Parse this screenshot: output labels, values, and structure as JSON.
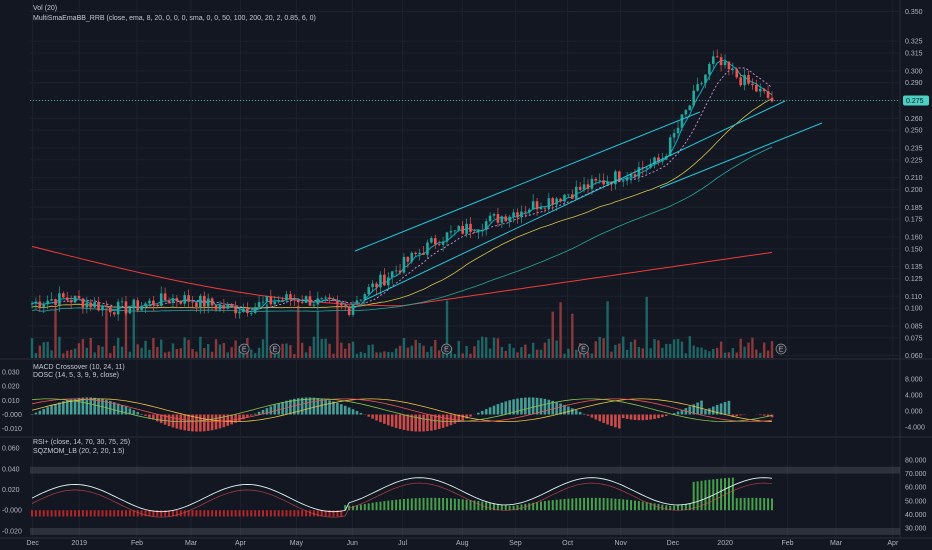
{
  "chart_data": [
    {
      "type": "candlestick",
      "panel": "price",
      "legend": [
        "Vol (20)",
        "MultiSmaEmaBB_RRB (close, ema, 8, 20, 0, 0, 0, sma, 0, 0, 50, 100, 200, 20, 2, 0.85, 6, 0)"
      ],
      "ylim": [
        0.058,
        0.358
      ],
      "y_ticks": [
        "0.350",
        "0.325",
        "0.315",
        "0.300",
        "0.290",
        "0.275",
        "0.260",
        "0.250",
        "0.235",
        "0.225",
        "0.210",
        "0.200",
        "0.185",
        "0.175",
        "0.160",
        "0.150",
        "0.135",
        "0.125",
        "0.110",
        "0.100",
        "0.085",
        "0.075",
        "0.060"
      ],
      "y_tick_values": [
        0.35,
        0.325,
        0.315,
        0.3,
        0.29,
        0.275,
        0.26,
        0.25,
        0.235,
        0.225,
        0.21,
        0.2,
        0.185,
        0.175,
        0.16,
        0.15,
        0.135,
        0.125,
        0.11,
        0.1,
        0.085,
        0.075,
        0.06
      ],
      "last_price": "0.275",
      "last_price_value": 0.275,
      "event_markers": [
        "E",
        "E",
        "E",
        "E",
        "E"
      ],
      "event_marker_positions": [
        0.262,
        0.295,
        0.479,
        0.626,
        0.838
      ],
      "colors": {
        "up": "#26a69a",
        "down": "#ef5350",
        "last_price_tag": "#4dd0c4",
        "channel": "#26c6da",
        "sma200": "#ef3b3b",
        "sma100": "#26a69a",
        "sma50": "#d4c24a",
        "ema8": "#00bcd4",
        "ema20": "#ce93d8"
      }
    },
    {
      "type": "histogram",
      "panel": "macd",
      "legend": [
        "MACD Crossover (10, 24, 11)",
        "DOSC (14, 5, 3, 9, 9, close)"
      ],
      "left_ticks": [
        "0.030",
        "0.020",
        "0.010",
        "-0.000",
        "-0.010"
      ],
      "left_tick_values": [
        0.03,
        0.02,
        0.01,
        0.0,
        -0.01
      ],
      "right_ticks": [
        "8.000",
        "4.000",
        "0.000",
        "-4.000"
      ],
      "right_tick_values": [
        8,
        4,
        0,
        -4
      ]
    },
    {
      "type": "line",
      "panel": "rsi",
      "legend": [
        "RSI+ (close, 14, 70, 30, 75, 25)",
        "SQZMOM_LB (20, 2, 20, 1.5)"
      ],
      "left_ticks": [
        "0.060",
        "0.040",
        "0.020",
        "-0.000",
        "-0.020"
      ],
      "left_tick_values": [
        0.06,
        0.04,
        0.02,
        0.0,
        -0.02
      ],
      "right_ticks": [
        "80.000",
        "70.000",
        "60.000",
        "50.000",
        "40.000",
        "30.000"
      ],
      "right_tick_values": [
        80,
        70,
        60,
        50,
        40,
        30
      ]
    }
  ],
  "x_axis": {
    "labels": [
      "Dec",
      "2019",
      "Feb",
      "Mar",
      "Apr",
      "May",
      "Jun",
      "Jul",
      "Aug",
      "Sep",
      "Oct",
      "Nov",
      "Dec",
      "2020",
      "Feb",
      "Mar",
      "Apr"
    ],
    "positions": [
      0.035,
      0.085,
      0.147,
      0.205,
      0.258,
      0.318,
      0.378,
      0.432,
      0.496,
      0.553,
      0.609,
      0.666,
      0.722,
      0.778,
      0.845,
      0.897,
      0.958
    ]
  }
}
